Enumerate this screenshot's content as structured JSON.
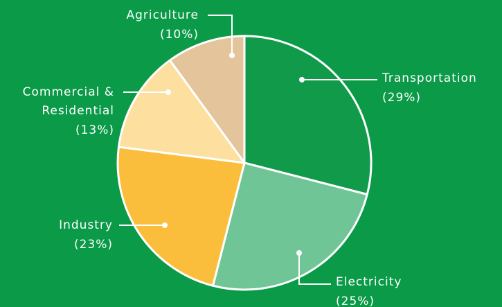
{
  "chart_data": {
    "type": "pie",
    "categories": [
      "Transportation",
      "Electricity",
      "Industry",
      "Commercial & Residential",
      "Agriculture"
    ],
    "values": [
      29,
      25,
      23,
      13,
      10
    ],
    "value_labels": [
      "(29%)",
      "(25%)",
      "(23%)",
      "(13%)",
      "(10%)"
    ],
    "colors": [
      "#129a4b",
      "#70c597",
      "#fbbe3c",
      "#fddfa0",
      "#e3c49b"
    ],
    "background": "#0b9a47"
  }
}
